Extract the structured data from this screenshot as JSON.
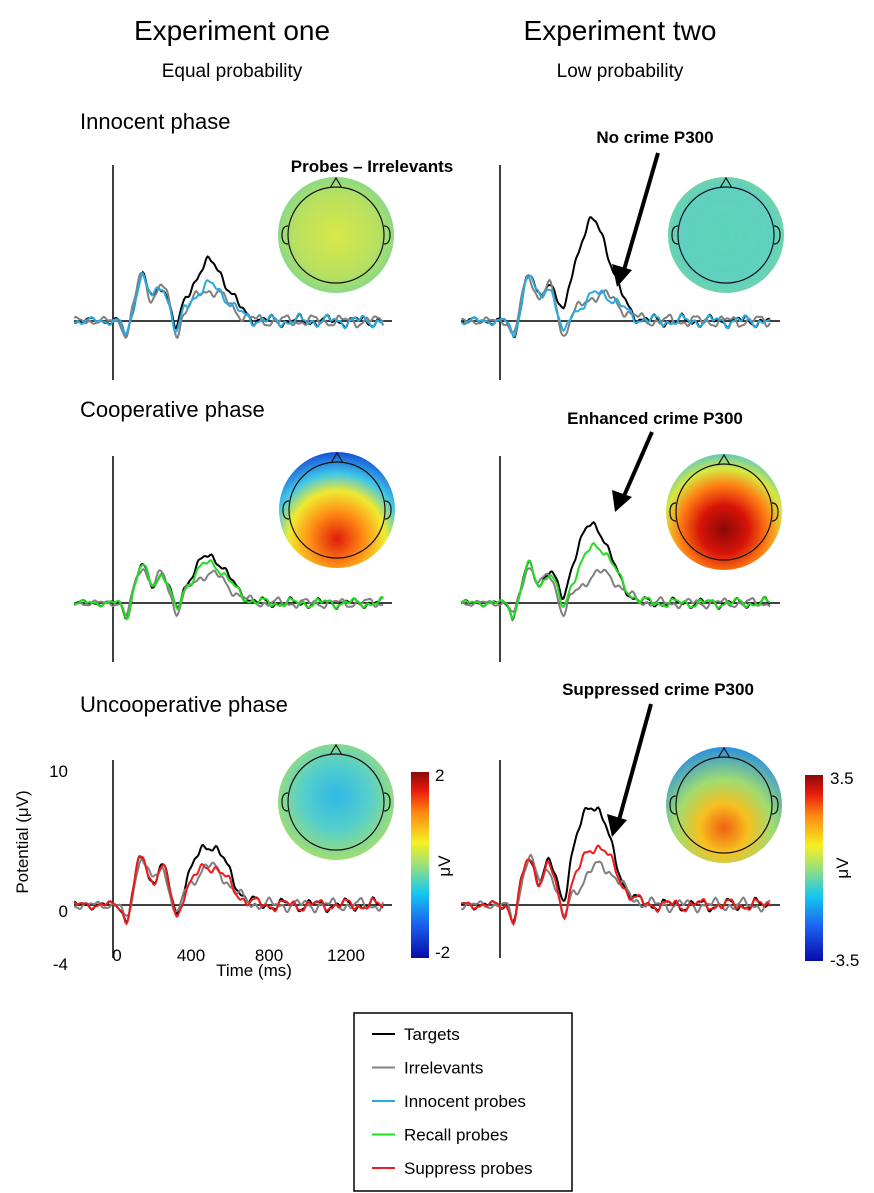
{
  "columns": [
    {
      "title": "Experiment one",
      "subtitle": "Equal probability"
    },
    {
      "title": "Experiment two",
      "subtitle": "Low probability"
    }
  ],
  "phases": [
    "Innocent phase",
    "Cooperative phase",
    "Uncooperative phase"
  ],
  "annotations": {
    "topomap_label": "Probes – Irrelevants",
    "no_crime": "No crime P300",
    "enhanced_crime": "Enhanced crime P300",
    "suppressed_crime": "Suppressed crime P300"
  },
  "axes": {
    "ylabel": "Potential (μV)",
    "xlabel": "Time (ms)",
    "y_ticks": [
      "10",
      "0",
      "-4"
    ],
    "x_ticks": [
      "0",
      "400",
      "800",
      "1200"
    ]
  },
  "colorbars": [
    {
      "max_label": "2",
      "min_label": "-2",
      "unit": "μV"
    },
    {
      "max_label": "3.5",
      "min_label": "-3.5",
      "unit": "μV"
    }
  ],
  "legend": [
    {
      "label": "Targets",
      "color": "#000000"
    },
    {
      "label": "Irrelevants",
      "color": "#808080"
    },
    {
      "label": "Innocent probes",
      "color": "#29abe2"
    },
    {
      "label": "Recall probes",
      "color": "#22dd22"
    },
    {
      "label": "Suppress probes",
      "color": "#ee1c1c"
    }
  ],
  "chart_data": {
    "type": "line",
    "x_unit": "ms",
    "y_unit": "μV",
    "xlim": [
      -200,
      1400
    ],
    "ylim": [
      -4,
      10
    ],
    "grid": false,
    "legend_position": "bottom-center",
    "panels": [
      {
        "experiment": "Experiment one",
        "phase": "Innocent phase",
        "series": [
          {
            "name": "Targets",
            "peak_x": 500,
            "peak_y": 5.4
          },
          {
            "name": "Irrelevants",
            "peak_x": 500,
            "peak_y": 2.9
          },
          {
            "name": "Innocent probes",
            "peak_x": 500,
            "peak_y": 3.3
          }
        ]
      },
      {
        "experiment": "Experiment two",
        "phase": "Innocent phase",
        "series": [
          {
            "name": "Targets",
            "peak_x": 480,
            "peak_y": 9.2
          },
          {
            "name": "Irrelevants",
            "peak_x": 520,
            "peak_y": 2.5
          },
          {
            "name": "Innocent probes",
            "peak_x": 520,
            "peak_y": 2.6
          }
        ]
      },
      {
        "experiment": "Experiment one",
        "phase": "Cooperative phase",
        "series": [
          {
            "name": "Targets",
            "peak_x": 500,
            "peak_y": 5.4
          },
          {
            "name": "Irrelevants",
            "peak_x": 500,
            "peak_y": 3.4
          },
          {
            "name": "Recall probes",
            "peak_x": 500,
            "peak_y": 4.6
          }
        ]
      },
      {
        "experiment": "Experiment two",
        "phase": "Cooperative phase",
        "series": [
          {
            "name": "Targets",
            "peak_x": 480,
            "peak_y": 9.0
          },
          {
            "name": "Irrelevants",
            "peak_x": 520,
            "peak_y": 3.5
          },
          {
            "name": "Recall probes",
            "peak_x": 500,
            "peak_y": 6.6
          }
        ]
      },
      {
        "experiment": "Experiment one",
        "phase": "Uncooperative phase",
        "series": [
          {
            "name": "Targets",
            "peak_x": 500,
            "peak_y": 5.4
          },
          {
            "name": "Irrelevants",
            "peak_x": 500,
            "peak_y": 3.4
          },
          {
            "name": "Suppress probes",
            "peak_x": 500,
            "peak_y": 3.5
          }
        ]
      },
      {
        "experiment": "Experiment two",
        "phase": "Uncooperative phase",
        "series": [
          {
            "name": "Targets",
            "peak_x": 480,
            "peak_y": 9.0
          },
          {
            "name": "Irrelevants",
            "peak_x": 520,
            "peak_y": 3.5
          },
          {
            "name": "Suppress probes",
            "peak_x": 500,
            "peak_y": 5.3
          }
        ]
      }
    ]
  }
}
